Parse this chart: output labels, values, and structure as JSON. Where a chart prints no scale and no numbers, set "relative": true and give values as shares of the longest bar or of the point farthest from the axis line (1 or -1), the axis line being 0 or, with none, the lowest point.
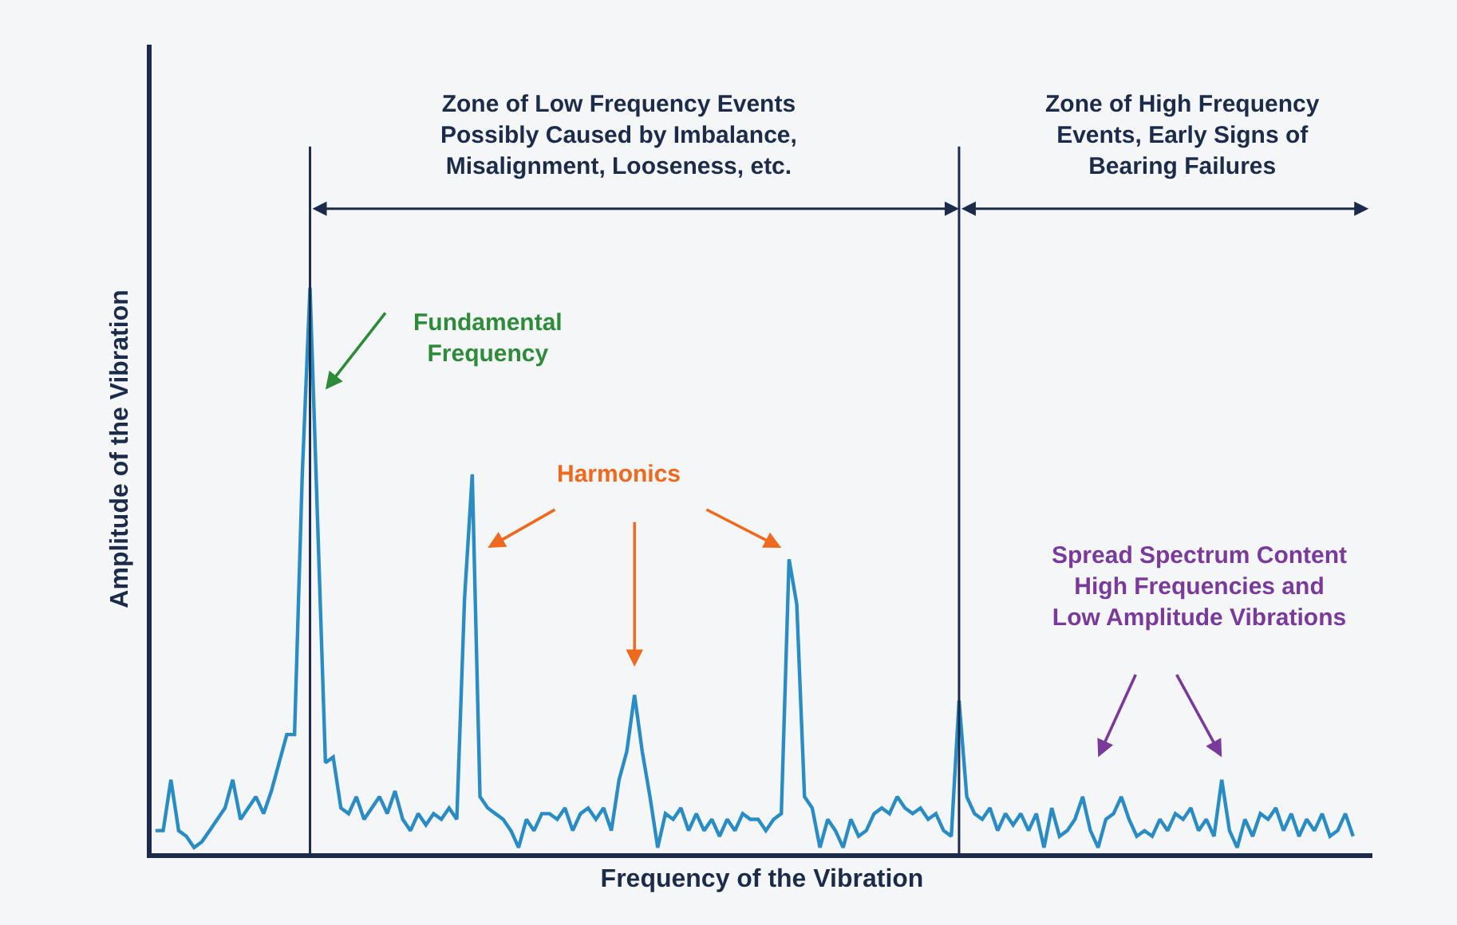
{
  "chart_data": {
    "type": "line",
    "relative": true,
    "xlabel": "Frequency of the Vibration",
    "ylabel": "Amplitude of the Vibration",
    "color": "#2a8cc4",
    "marker": "none",
    "line_style": "solid",
    "categories": [
      null,
      null,
      null,
      null,
      null,
      null,
      null,
      null,
      null,
      null,
      null,
      null,
      null,
      null,
      null,
      null,
      null,
      null,
      null,
      null,
      null,
      null,
      null,
      null,
      null,
      null,
      null,
      null,
      null,
      null,
      null,
      null,
      null,
      null,
      null,
      null,
      null,
      null,
      null,
      null,
      null,
      null,
      null,
      null,
      null,
      null,
      null,
      null,
      null,
      null,
      null,
      null,
      null,
      null,
      null,
      null,
      null,
      null,
      null,
      null,
      null,
      null,
      null,
      null,
      null,
      null,
      null,
      null,
      null,
      null,
      null,
      null,
      null,
      null,
      null,
      null,
      null,
      null,
      null,
      null,
      null,
      null,
      null,
      null,
      null,
      null,
      null,
      null,
      null,
      null,
      null,
      null,
      null,
      null,
      null,
      null,
      null,
      null,
      null,
      null,
      null,
      null,
      null,
      null,
      null,
      null,
      null,
      null,
      null,
      null,
      null,
      null,
      null,
      null,
      null,
      null,
      null,
      null,
      null,
      null,
      null,
      null,
      null,
      null,
      null,
      null,
      null,
      null,
      null,
      null,
      null,
      null,
      null,
      null,
      null,
      null,
      null,
      null,
      null,
      null,
      null,
      null,
      null,
      null,
      null,
      null,
      null,
      null,
      null,
      null,
      null,
      null,
      null,
      null,
      null,
      null
    ],
    "values": [
      0.04,
      0.04,
      0.13,
      0.04,
      0.03,
      0.01,
      0.02,
      0.04,
      0.06,
      0.08,
      0.13,
      0.06,
      0.08,
      0.1,
      0.07,
      0.11,
      0.16,
      0.21,
      0.21,
      0.67,
      1,
      0.58,
      0.16,
      0.17,
      0.08,
      0.07,
      0.1,
      0.06,
      0.08,
      0.1,
      0.07,
      0.11,
      0.06,
      0.04,
      0.07,
      0.05,
      0.07,
      0.06,
      0.08,
      0.06,
      0.45,
      0.67,
      0.1,
      0.08,
      0.07,
      0.06,
      0.04,
      0.01,
      0.06,
      0.04,
      0.07,
      0.07,
      0.06,
      0.08,
      0.04,
      0.07,
      0.08,
      0.06,
      0.08,
      0.04,
      0.13,
      0.18,
      0.28,
      0.18,
      0.1,
      0.01,
      0.07,
      0.06,
      0.08,
      0.04,
      0.07,
      0.04,
      0.06,
      0.03,
      0.06,
      0.04,
      0.07,
      0.06,
      0.06,
      0.04,
      0.06,
      0.07,
      0.52,
      0.44,
      0.1,
      0.08,
      0.01,
      0.06,
      0.04,
      0.01,
      0.06,
      0.03,
      0.04,
      0.07,
      0.08,
      0.07,
      0.1,
      0.08,
      0.07,
      0.08,
      0.06,
      0.07,
      0.04,
      0.03,
      0.27,
      0.1,
      0.07,
      0.06,
      0.08,
      0.04,
      0.07,
      0.05,
      0.07,
      0.04,
      0.07,
      0.01,
      0.08,
      0.03,
      0.04,
      0.06,
      0.1,
      0.04,
      0.01,
      0.06,
      0.07,
      0.1,
      0.06,
      0.03,
      0.04,
      0.03,
      0.06,
      0.04,
      0.07,
      0.06,
      0.08,
      0.04,
      0.06,
      0.03,
      0.13,
      0.04,
      0.01,
      0.06,
      0.03,
      0.07,
      0.06,
      0.08,
      0.04,
      0.07,
      0.03,
      0.06,
      0.04,
      0.07,
      0.03,
      0.04,
      0.07,
      0.03
    ],
    "annotations": [
      "Zone of Low Frequency Events\nPossibly Caused by Imbalance,\nMisalignment, Looseness, etc.",
      "Zone of High Frequency\nEvents, Early Signs of\nBearing Failures",
      "Fundamental\nFrequency",
      "Harmonics",
      "Spread Spectrum Content\nHigh Frequencies and\nLow Amplitude Vibrations"
    ]
  }
}
